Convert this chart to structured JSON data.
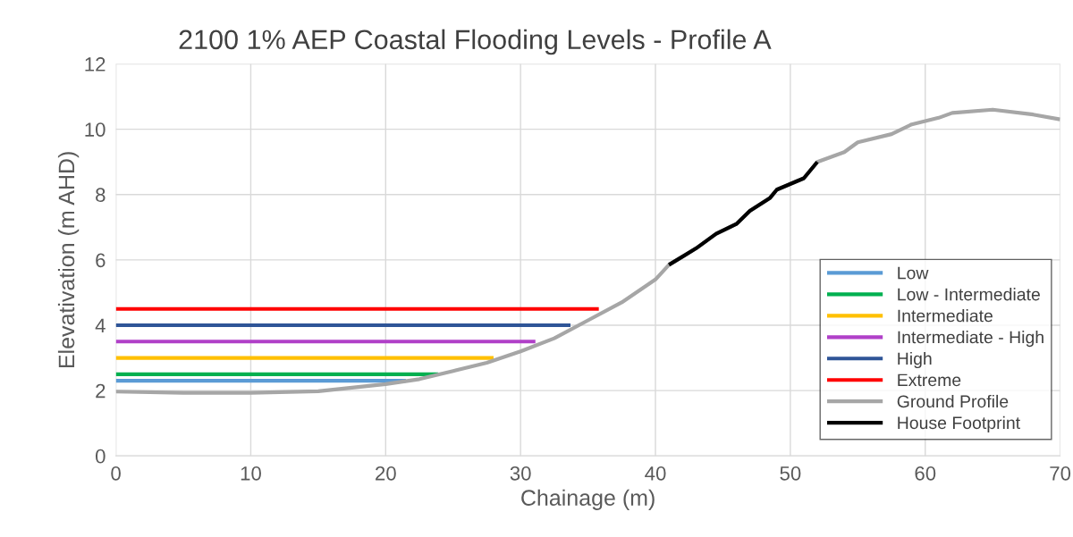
{
  "chart_data": {
    "type": "line",
    "title": "2100 1% AEP Coastal Flooding Levels - Profile A",
    "xlabel": "Chainage (m)",
    "ylabel": "Elevativation (m AHD)",
    "xlim": [
      0,
      70
    ],
    "xticks": [
      0,
      10,
      20,
      30,
      40,
      50,
      60,
      70
    ],
    "ylim": [
      0,
      12
    ],
    "yticks": [
      0,
      2,
      4,
      6,
      8,
      10,
      12
    ],
    "grid": true,
    "legend": "bottom right",
    "marker": "none",
    "line_style": "solid",
    "series": [
      {
        "name": "Low",
        "color": "#5b9bd5",
        "x": [
          0,
          21.5
        ],
        "values": [
          2.3,
          2.3
        ]
      },
      {
        "name": "Low - Intermediate",
        "color": "#00b050",
        "x": [
          0,
          23.9
        ],
        "values": [
          2.5,
          2.5
        ]
      },
      {
        "name": "Intermediate",
        "color": "#ffc000",
        "x": [
          0,
          28
        ],
        "values": [
          3.0,
          3.0
        ]
      },
      {
        "name": "Intermediate - High",
        "color": "#b040c8",
        "x": [
          0,
          31.1
        ],
        "values": [
          3.5,
          3.5
        ]
      },
      {
        "name": "High",
        "color": "#2f5597",
        "x": [
          0,
          33.7
        ],
        "values": [
          4.0,
          4.0
        ]
      },
      {
        "name": "Extreme",
        "color": "#ff0000",
        "x": [
          0,
          35.8
        ],
        "values": [
          4.5,
          4.5
        ]
      },
      {
        "name": "Ground Profile",
        "color": "#a6a6a6",
        "x": [
          0,
          5,
          10,
          15,
          20,
          22.5,
          25,
          27.5,
          30,
          32.5,
          35,
          37.5,
          40,
          41,
          43,
          44.5,
          46,
          47,
          48.5,
          49,
          51,
          52,
          54,
          55,
          57.5,
          59,
          61,
          62,
          65,
          68,
          70
        ],
        "values": [
          1.97,
          1.93,
          1.93,
          1.98,
          2.2,
          2.35,
          2.6,
          2.85,
          3.2,
          3.6,
          4.15,
          4.7,
          5.4,
          5.85,
          6.35,
          6.8,
          7.1,
          7.5,
          7.9,
          8.15,
          8.5,
          9.0,
          9.3,
          9.6,
          9.85,
          10.15,
          10.35,
          10.5,
          10.6,
          10.45,
          10.3
        ]
      },
      {
        "name": "House Footprint",
        "color": "#000000",
        "x": [
          41,
          43,
          44.5,
          46,
          47,
          48.5,
          49,
          51,
          52
        ],
        "values": [
          5.85,
          6.35,
          6.8,
          7.1,
          7.5,
          7.9,
          8.15,
          8.5,
          9.0
        ]
      }
    ]
  }
}
